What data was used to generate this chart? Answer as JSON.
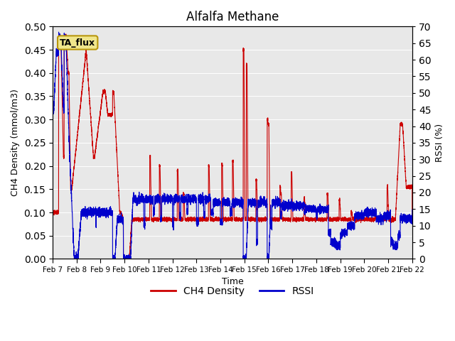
{
  "title": "Alfalfa Methane",
  "xlabel": "Time",
  "ylabel_left": "CH4 Density (mmol/m3)",
  "ylabel_right": "RSSI (%)",
  "ylim_left": [
    0.0,
    0.5
  ],
  "ylim_right": [
    0,
    70
  ],
  "background_color": "#e8e8e8",
  "tag_label": "TA_flux",
  "tag_bg": "#f0e68c",
  "tag_border": "#b8960c",
  "ch4_color": "#cc0000",
  "rssi_color": "#0000cc",
  "legend_ch4": "CH4 Density",
  "legend_rssi": "RSSI",
  "xtick_labels": [
    "Feb 7",
    "Feb 8",
    "Feb 9",
    "Feb 10",
    "Feb 11",
    "Feb 12",
    "Feb 13",
    "Feb 14",
    "Feb 15",
    "Feb 16",
    "Feb 17",
    "Feb 18",
    "Feb 19",
    "Feb 20",
    "Feb 21",
    "Feb 22"
  ]
}
